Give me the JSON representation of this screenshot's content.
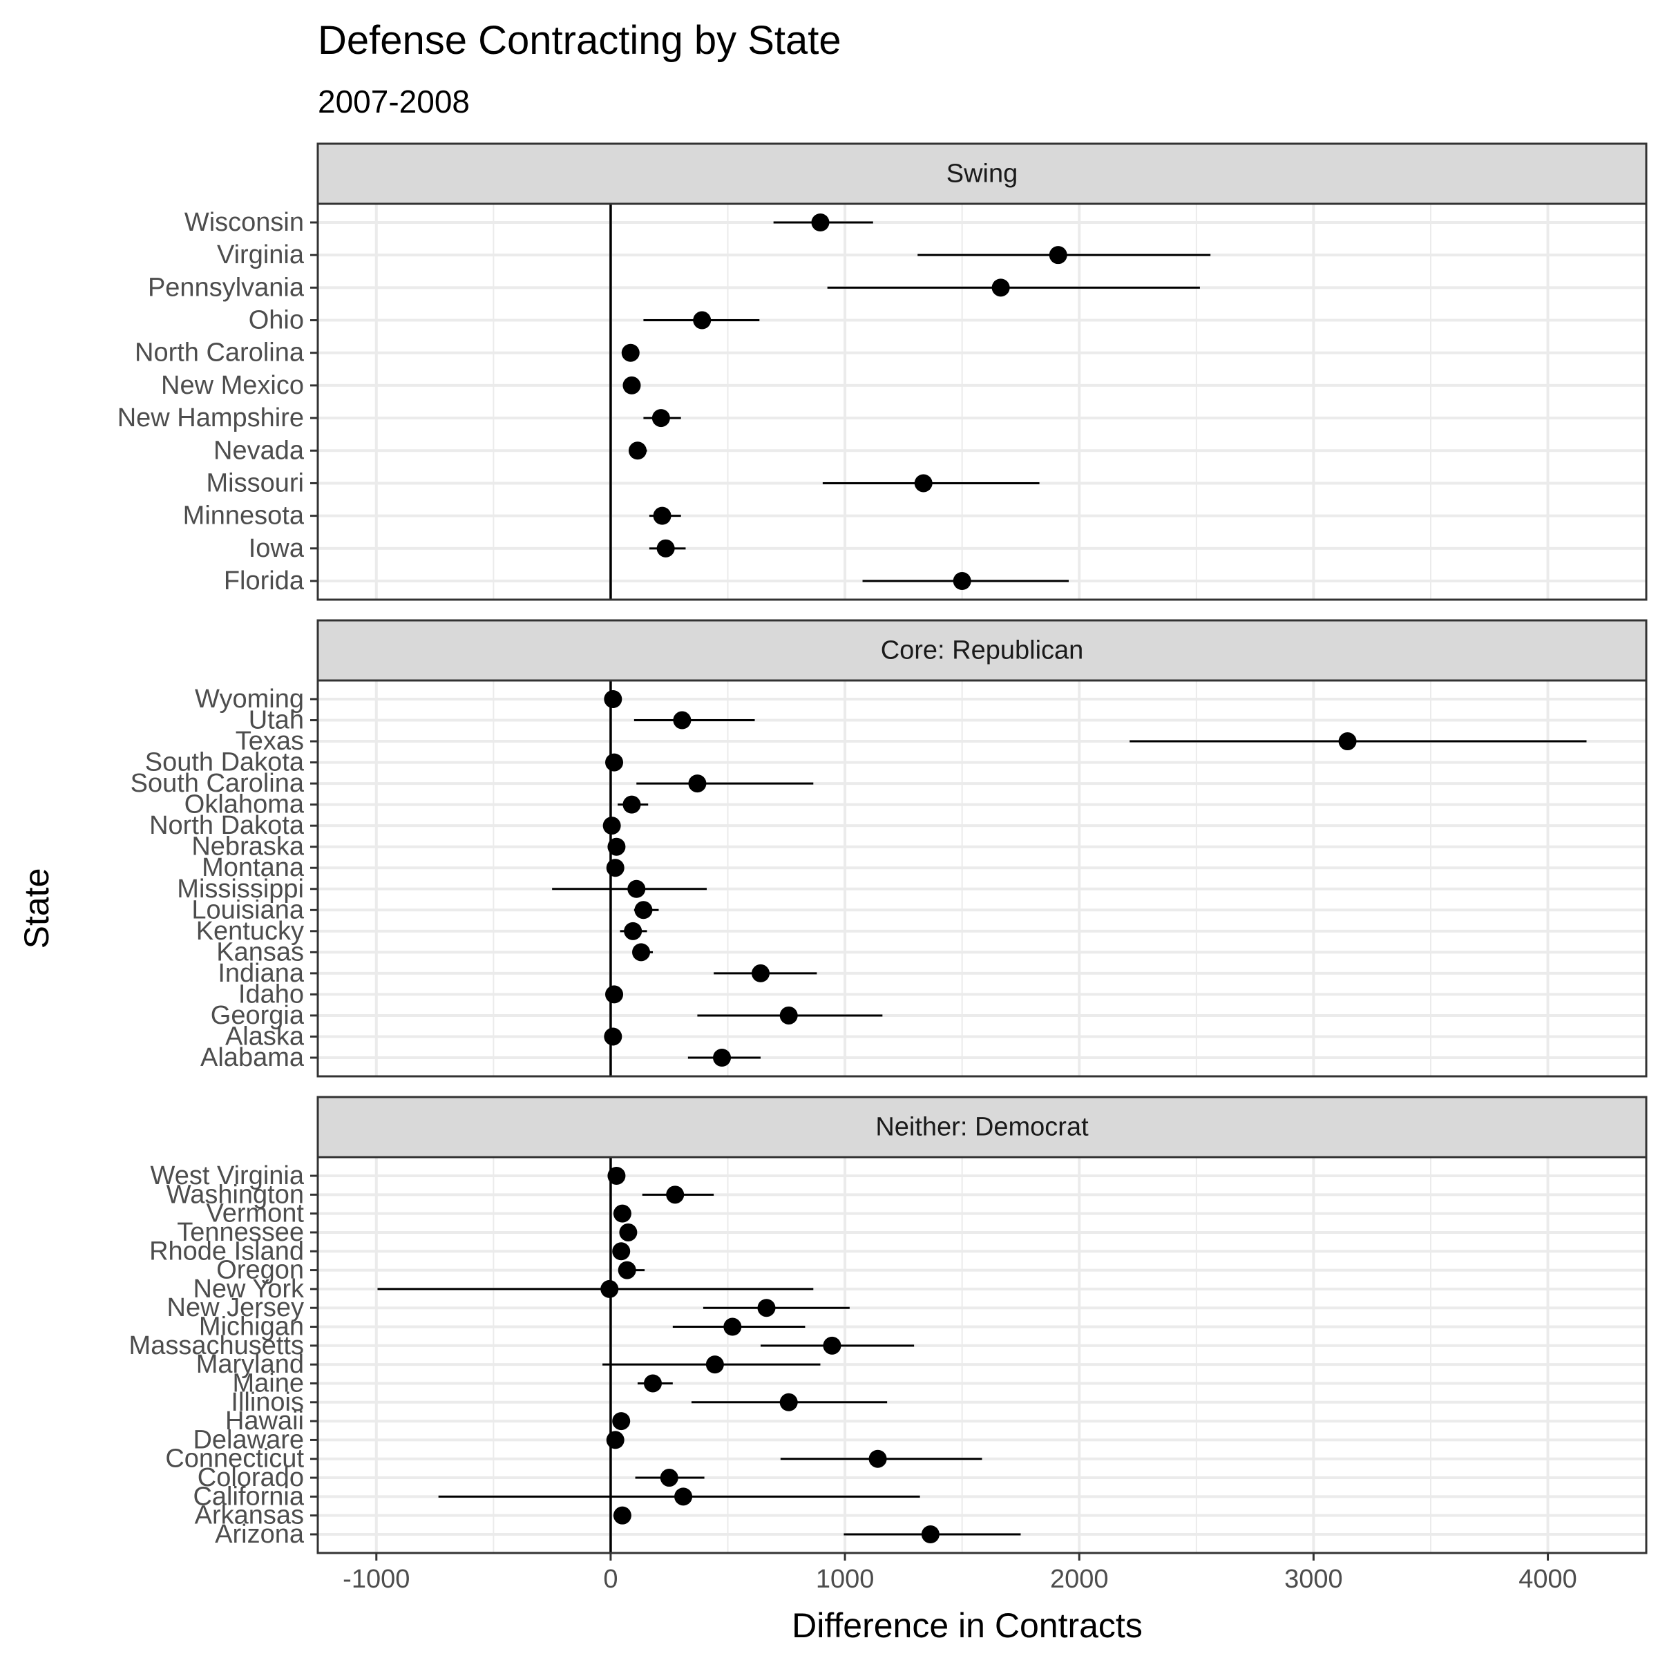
{
  "chart_data": {
    "type": "dot-errorbar-faceted",
    "title": "Defense Contracting by State",
    "subtitle": "2007-2008",
    "xlabel": "Difference in Contracts",
    "ylabel": "State",
    "xlim": [
      -1250,
      4420
    ],
    "x_ticks": [
      -1000,
      0,
      1000,
      2000,
      3000,
      4000
    ],
    "x_tick_labels": [
      "-1000",
      "0",
      "1000",
      "2000",
      "3000",
      "4000"
    ],
    "reference_line_x": 0,
    "grid": true,
    "colors": {
      "panel_border": "#333333",
      "strip_fill": "#d9d9d9",
      "grid": "#ebebeb",
      "points": "#000000"
    },
    "facets": [
      {
        "label": "Swing",
        "states": [
          {
            "name": "Wisconsin",
            "value": 895,
            "low": 695,
            "high": 1120
          },
          {
            "name": "Virginia",
            "value": 1910,
            "low": 1310,
            "high": 2560
          },
          {
            "name": "Pennsylvania",
            "value": 1665,
            "low": 925,
            "high": 2515
          },
          {
            "name": "Ohio",
            "value": 390,
            "low": 140,
            "high": 635
          },
          {
            "name": "North Carolina",
            "value": 85,
            "low": 60,
            "high": 110
          },
          {
            "name": "New Mexico",
            "value": 90,
            "low": 65,
            "high": 115
          },
          {
            "name": "New Hampshire",
            "value": 215,
            "low": 140,
            "high": 300
          },
          {
            "name": "Nevada",
            "value": 115,
            "low": 80,
            "high": 155
          },
          {
            "name": "Missouri",
            "value": 1335,
            "low": 905,
            "high": 1830
          },
          {
            "name": "Minnesota",
            "value": 220,
            "low": 165,
            "high": 300
          },
          {
            "name": "Iowa",
            "value": 235,
            "low": 165,
            "high": 320
          },
          {
            "name": "Florida",
            "value": 1500,
            "low": 1075,
            "high": 1955
          }
        ]
      },
      {
        "label": "Core: Republican",
        "states": [
          {
            "name": "Wyoming",
            "value": 10,
            "low": 0,
            "high": 20
          },
          {
            "name": "Utah",
            "value": 305,
            "low": 100,
            "high": 615
          },
          {
            "name": "Texas",
            "value": 3145,
            "low": 2215,
            "high": 4165
          },
          {
            "name": "South Dakota",
            "value": 15,
            "low": 5,
            "high": 25
          },
          {
            "name": "South Carolina",
            "value": 370,
            "low": 110,
            "high": 865
          },
          {
            "name": "Oklahoma",
            "value": 90,
            "low": 30,
            "high": 160
          },
          {
            "name": "North Dakota",
            "value": 5,
            "low": -10,
            "high": 20
          },
          {
            "name": "Nebraska",
            "value": 25,
            "low": 5,
            "high": 45
          },
          {
            "name": "Montana",
            "value": 20,
            "low": 5,
            "high": 35
          },
          {
            "name": "Mississippi",
            "value": 110,
            "low": -250,
            "high": 410
          },
          {
            "name": "Louisiana",
            "value": 140,
            "low": 100,
            "high": 205
          },
          {
            "name": "Kentucky",
            "value": 95,
            "low": 40,
            "high": 155
          },
          {
            "name": "Kansas",
            "value": 130,
            "low": 100,
            "high": 180
          },
          {
            "name": "Indiana",
            "value": 640,
            "low": 440,
            "high": 880
          },
          {
            "name": "Idaho",
            "value": 15,
            "low": 5,
            "high": 25
          },
          {
            "name": "Georgia",
            "value": 760,
            "low": 370,
            "high": 1160
          },
          {
            "name": "Alaska",
            "value": 10,
            "low": 0,
            "high": 20
          },
          {
            "name": "Alabama",
            "value": 475,
            "low": 330,
            "high": 640
          }
        ]
      },
      {
        "label": "Neither: Democrat",
        "states": [
          {
            "name": "West Virginia",
            "value": 25,
            "low": 10,
            "high": 40
          },
          {
            "name": "Washington",
            "value": 275,
            "low": 135,
            "high": 440
          },
          {
            "name": "Vermont",
            "value": 50,
            "low": 35,
            "high": 65
          },
          {
            "name": "Tennessee",
            "value": 75,
            "low": 55,
            "high": 95
          },
          {
            "name": "Rhode Island",
            "value": 45,
            "low": 30,
            "high": 60
          },
          {
            "name": "Oregon",
            "value": 70,
            "low": 35,
            "high": 145
          },
          {
            "name": "New York",
            "value": -5,
            "low": -995,
            "high": 865
          },
          {
            "name": "New Jersey",
            "value": 665,
            "low": 395,
            "high": 1020
          },
          {
            "name": "Michigan",
            "value": 520,
            "low": 265,
            "high": 830
          },
          {
            "name": "Massachusetts",
            "value": 945,
            "low": 640,
            "high": 1295
          },
          {
            "name": "Maryland",
            "value": 445,
            "low": -35,
            "high": 895
          },
          {
            "name": "Maine",
            "value": 180,
            "low": 115,
            "high": 265
          },
          {
            "name": "Illinois",
            "value": 760,
            "low": 345,
            "high": 1180
          },
          {
            "name": "Hawaii",
            "value": 45,
            "low": 30,
            "high": 60
          },
          {
            "name": "Delaware",
            "value": 20,
            "low": 10,
            "high": 30
          },
          {
            "name": "Connecticut",
            "value": 1140,
            "low": 725,
            "high": 1585
          },
          {
            "name": "Colorado",
            "value": 250,
            "low": 105,
            "high": 400
          },
          {
            "name": "California",
            "value": 310,
            "low": -735,
            "high": 1320
          },
          {
            "name": "Arkansas",
            "value": 50,
            "low": 35,
            "high": 65
          },
          {
            "name": "Arizona",
            "value": 1365,
            "low": 995,
            "high": 1750
          }
        ]
      }
    ]
  }
}
